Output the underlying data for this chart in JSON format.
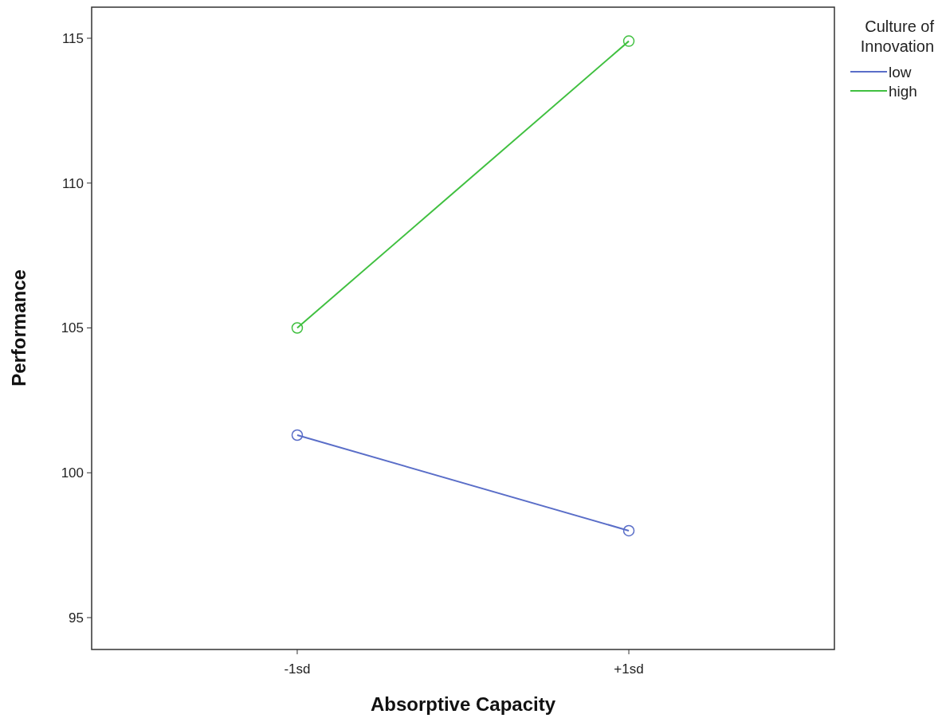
{
  "chart_data": {
    "type": "line",
    "xlabel": "Absorptive Capacity",
    "ylabel": "Performance",
    "legend_title": "Culture of Innovation",
    "categories": [
      "-1sd",
      "+1sd"
    ],
    "series": [
      {
        "name": "low",
        "color": "#5a6ec8",
        "values": [
          101.3,
          98.0
        ]
      },
      {
        "name": "high",
        "color": "#40c040",
        "values": [
          105.0,
          114.9
        ]
      }
    ],
    "ylim": [
      93.9,
      116.1
    ],
    "yticks": [
      95,
      100,
      105,
      110,
      115
    ],
    "grid": false,
    "legend": "top right",
    "marker": "circle",
    "line_style": "solid"
  }
}
